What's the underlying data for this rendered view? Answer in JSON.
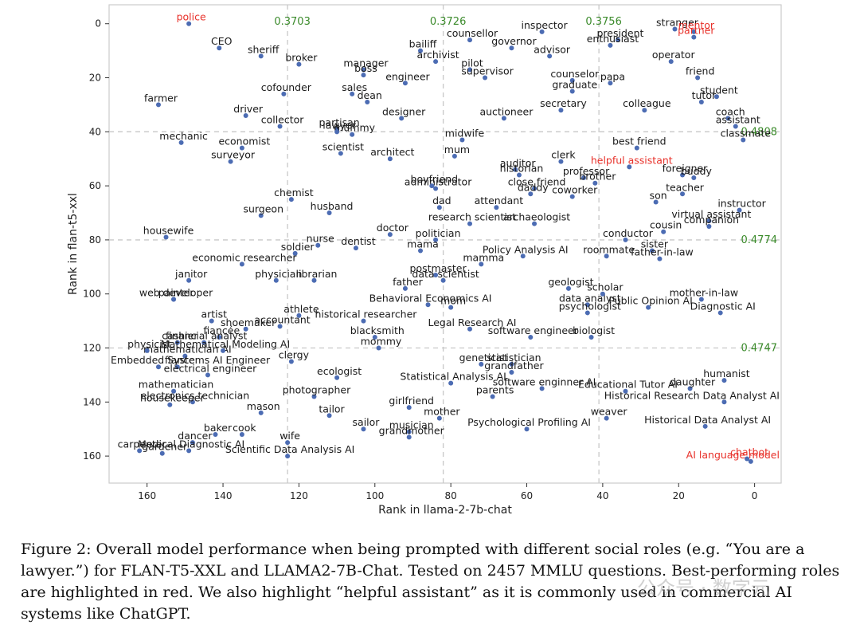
{
  "figure": {
    "caption": "Figure 2: Overall model performance when being prompted with different social roles (e.g. “You are a lawyer.”) for FLAN-T5-XXL and LLAMA2-7B-Chat. Tested on 2457 MMLU questions. Best-performing roles are highlighted in red. We also highlight “helpful assistant” as it is commonly used in commercial AI systems like ChatGPT.",
    "watermark": "公众号 · 数字元"
  },
  "chart_data": {
    "type": "scatter",
    "xlabel": "Rank in llama-2-7b-chat",
    "ylabel": "Rank in flan-t5-xxl",
    "xlim": [
      170,
      -7
    ],
    "ylim": [
      170,
      -7
    ],
    "x_reversed": true,
    "y_reversed": true,
    "xticks": [
      160,
      140,
      120,
      100,
      80,
      60,
      40,
      20,
      0
    ],
    "yticks": [
      0,
      20,
      40,
      60,
      80,
      100,
      120,
      140,
      160
    ],
    "grid": false,
    "colors": {
      "point": "#4c6cb3",
      "label": "#1a1a1a",
      "highlight": "#e8312a",
      "threshold": "#3a8a2a",
      "frame": "#cccccc",
      "guide": "#c8c8c8"
    },
    "vertical_thresholds": [
      {
        "x": 123,
        "value": "0.3703"
      },
      {
        "x": 82,
        "value": "0.3726"
      },
      {
        "x": 41,
        "value": "0.3756"
      }
    ],
    "horizontal_thresholds": [
      {
        "y": 40,
        "value": "0.4808"
      },
      {
        "y": 80,
        "value": "0.4774"
      },
      {
        "y": 120,
        "value": "0.4747"
      }
    ],
    "points": [
      {
        "label": "police",
        "x": 149,
        "y": 0,
        "highlight": true
      },
      {
        "label": "inspector",
        "x": 56,
        "y": 3
      },
      {
        "label": "stranger",
        "x": 21,
        "y": 2
      },
      {
        "label": "mentor",
        "x": 16,
        "y": 3,
        "highlight": true
      },
      {
        "label": "partner",
        "x": 16,
        "y": 5,
        "highlight": true
      },
      {
        "label": "counsellor",
        "x": 75,
        "y": 6
      },
      {
        "label": "president",
        "x": 36,
        "y": 6
      },
      {
        "label": "CEO",
        "x": 141,
        "y": 9
      },
      {
        "label": "broker",
        "x": 120,
        "y": 15
      },
      {
        "label": "bailiff",
        "x": 88,
        "y": 10
      },
      {
        "label": "governor",
        "x": 64,
        "y": 9
      },
      {
        "label": "advisor",
        "x": 54,
        "y": 12
      },
      {
        "label": "enthusiast",
        "x": 38,
        "y": 8
      },
      {
        "label": "operator",
        "x": 22,
        "y": 14
      },
      {
        "label": "sheriff",
        "x": 130,
        "y": 12
      },
      {
        "label": "manager",
        "x": 103,
        "y": 17
      },
      {
        "label": "archivist",
        "x": 84,
        "y": 14
      },
      {
        "label": "pilot",
        "x": 75,
        "y": 17
      },
      {
        "label": "friend",
        "x": 15,
        "y": 20
      },
      {
        "label": "boss",
        "x": 103,
        "y": 19
      },
      {
        "label": "engineer",
        "x": 92,
        "y": 22
      },
      {
        "label": "supervisor",
        "x": 71,
        "y": 20
      },
      {
        "label": "counselor",
        "x": 48,
        "y": 21
      },
      {
        "label": "papa",
        "x": 38,
        "y": 22
      },
      {
        "label": "cofounder",
        "x": 124,
        "y": 26
      },
      {
        "label": "student",
        "x": 10,
        "y": 27
      },
      {
        "label": "farmer",
        "x": 157,
        "y": 30
      },
      {
        "label": "sales",
        "x": 106,
        "y": 26
      },
      {
        "label": "dean",
        "x": 102,
        "y": 29
      },
      {
        "label": "graduate",
        "x": 48,
        "y": 25
      },
      {
        "label": "colleague",
        "x": 29,
        "y": 32
      },
      {
        "label": "tutor",
        "x": 14,
        "y": 29
      },
      {
        "label": "driver",
        "x": 134,
        "y": 34
      },
      {
        "label": "designer",
        "x": 93,
        "y": 35
      },
      {
        "label": "auctioneer",
        "x": 66,
        "y": 35
      },
      {
        "label": "secretary",
        "x": 51,
        "y": 32
      },
      {
        "label": "coach",
        "x": 7,
        "y": 35
      },
      {
        "label": "collector",
        "x": 125,
        "y": 38
      },
      {
        "label": "partisan",
        "x": 110,
        "y": 39
      },
      {
        "label": "mummy",
        "x": 106,
        "y": 41
      },
      {
        "label": "midwife",
        "x": 77,
        "y": 43
      },
      {
        "label": "assistant",
        "x": 5,
        "y": 38
      },
      {
        "label": "mechanic",
        "x": 151,
        "y": 44
      },
      {
        "label": "lawyer",
        "x": 110,
        "y": 40
      },
      {
        "label": "economist",
        "x": 135,
        "y": 46
      },
      {
        "label": "best friend",
        "x": 31,
        "y": 46
      },
      {
        "label": "classmate",
        "x": 3,
        "y": 43
      },
      {
        "label": "surveyor",
        "x": 138,
        "y": 51
      },
      {
        "label": "scientist",
        "x": 109,
        "y": 48
      },
      {
        "label": "architect",
        "x": 96,
        "y": 50
      },
      {
        "label": "mum",
        "x": 79,
        "y": 49
      },
      {
        "label": "clerk",
        "x": 51,
        "y": 51
      },
      {
        "label": "helpful assistant",
        "x": 33,
        "y": 53,
        "highlight": true
      },
      {
        "label": "auditor",
        "x": 63,
        "y": 54
      },
      {
        "label": "professor",
        "x": 45,
        "y": 57
      },
      {
        "label": "foreigner",
        "x": 19,
        "y": 56
      },
      {
        "label": "historian",
        "x": 62,
        "y": 56
      },
      {
        "label": "administrator",
        "x": 84,
        "y": 61
      },
      {
        "label": "brother",
        "x": 42,
        "y": 59
      },
      {
        "label": "buddy",
        "x": 16,
        "y": 57
      },
      {
        "label": "chemist",
        "x": 122,
        "y": 65
      },
      {
        "label": "boyfriend",
        "x": 85,
        "y": 60
      },
      {
        "label": "close friend",
        "x": 58,
        "y": 61
      },
      {
        "label": "coworker",
        "x": 48,
        "y": 64
      },
      {
        "label": "daddy",
        "x": 59,
        "y": 63
      },
      {
        "label": "teacher",
        "x": 19,
        "y": 63
      },
      {
        "label": "husband",
        "x": 112,
        "y": 70
      },
      {
        "label": "dad",
        "x": 83,
        "y": 68
      },
      {
        "label": "attendant",
        "x": 68,
        "y": 68
      },
      {
        "label": "son",
        "x": 26,
        "y": 66
      },
      {
        "label": "instructor",
        "x": 4,
        "y": 69
      },
      {
        "label": "surgeon",
        "x": 130,
        "y": 71
      },
      {
        "label": "research scientist",
        "x": 75,
        "y": 74
      },
      {
        "label": "archaeologist",
        "x": 58,
        "y": 74
      },
      {
        "label": "virtual assistant",
        "x": 12,
        "y": 73
      },
      {
        "label": "companion",
        "x": 12,
        "y": 75
      },
      {
        "label": "housewife",
        "x": 155,
        "y": 79
      },
      {
        "label": "cousin",
        "x": 24,
        "y": 77
      },
      {
        "label": "dentist",
        "x": 105,
        "y": 83
      },
      {
        "label": "doctor",
        "x": 96,
        "y": 78
      },
      {
        "label": "politician",
        "x": 84,
        "y": 80
      },
      {
        "label": "conductor",
        "x": 34,
        "y": 80
      },
      {
        "label": "soldier",
        "x": 121,
        "y": 85
      },
      {
        "label": "nurse",
        "x": 115,
        "y": 82
      },
      {
        "label": "mama",
        "x": 88,
        "y": 84
      },
      {
        "label": "Policy Analysis AI",
        "x": 61,
        "y": 86
      },
      {
        "label": "roommate",
        "x": 39,
        "y": 86
      },
      {
        "label": "sister",
        "x": 27,
        "y": 84
      },
      {
        "label": "economic researcher",
        "x": 135,
        "y": 89
      },
      {
        "label": "postmaster",
        "x": 84,
        "y": 93
      },
      {
        "label": "father-in-law",
        "x": 25,
        "y": 87
      },
      {
        "label": "mamma",
        "x": 72,
        "y": 89
      },
      {
        "label": "janitor",
        "x": 149,
        "y": 95
      },
      {
        "label": "physician",
        "x": 126,
        "y": 95
      },
      {
        "label": "librarian",
        "x": 116,
        "y": 95
      },
      {
        "label": "data scientist",
        "x": 82,
        "y": 95
      },
      {
        "label": "web developer",
        "x": 153,
        "y": 102
      },
      {
        "label": "father",
        "x": 92,
        "y": 98
      },
      {
        "label": "geologist",
        "x": 49,
        "y": 98
      },
      {
        "label": "mother-in-law",
        "x": 14,
        "y": 102
      },
      {
        "label": "mom",
        "x": 80,
        "y": 105
      },
      {
        "label": "data analyst",
        "x": 44,
        "y": 104
      },
      {
        "label": "scholar",
        "x": 40,
        "y": 100
      },
      {
        "label": "painter",
        "x": 153,
        "y": 102
      },
      {
        "label": "Behavioral Economics AI",
        "x": 86,
        "y": 104
      },
      {
        "label": "Public Opinion AI",
        "x": 28,
        "y": 105
      },
      {
        "label": "Diagnostic AI",
        "x": 9,
        "y": 107
      },
      {
        "label": "artist",
        "x": 143,
        "y": 110
      },
      {
        "label": "athlete",
        "x": 120,
        "y": 108
      },
      {
        "label": "psychologist",
        "x": 44,
        "y": 107
      },
      {
        "label": "shoemaker",
        "x": 134,
        "y": 113
      },
      {
        "label": "accountant",
        "x": 125,
        "y": 112
      },
      {
        "label": "historical researcher",
        "x": 103,
        "y": 110
      },
      {
        "label": "fiancée",
        "x": 141,
        "y": 116
      },
      {
        "label": "blacksmith",
        "x": 100,
        "y": 116
      },
      {
        "label": "Legal Research AI",
        "x": 75,
        "y": 113
      },
      {
        "label": "biologist",
        "x": 43,
        "y": 116
      },
      {
        "label": "cashier",
        "x": 152,
        "y": 118
      },
      {
        "label": "financial analyst",
        "x": 145,
        "y": 118
      },
      {
        "label": "mommy",
        "x": 99,
        "y": 120
      },
      {
        "label": "software engineer",
        "x": 59,
        "y": 116
      },
      {
        "label": "mathematician AI",
        "x": 150,
        "y": 123
      },
      {
        "label": "Mathematical Modeling AI",
        "x": 140,
        "y": 121
      },
      {
        "label": "physicist",
        "x": 160,
        "y": 121
      },
      {
        "label": "Embedded Systems AI Engineer",
        "x": 157,
        "y": 127
      },
      {
        "label": "fiance",
        "x": 152,
        "y": 127
      },
      {
        "label": "clergy",
        "x": 122,
        "y": 125
      },
      {
        "label": "geneticist",
        "x": 72,
        "y": 126
      },
      {
        "label": "statistician",
        "x": 64,
        "y": 126
      },
      {
        "label": "electrical engineer",
        "x": 144,
        "y": 130
      },
      {
        "label": "grandfather",
        "x": 64,
        "y": 129
      },
      {
        "label": "humanist",
        "x": 8,
        "y": 132
      },
      {
        "label": "ecologist",
        "x": 110,
        "y": 131
      },
      {
        "label": "Statistical Analysis AI",
        "x": 80,
        "y": 133
      },
      {
        "label": "software enginner AI",
        "x": 56,
        "y": 135
      },
      {
        "label": "mathematician",
        "x": 153,
        "y": 136
      },
      {
        "label": "electronics technician",
        "x": 148,
        "y": 140
      },
      {
        "label": "photographer",
        "x": 116,
        "y": 138
      },
      {
        "label": "parents",
        "x": 69,
        "y": 138
      },
      {
        "label": "daughter",
        "x": 17,
        "y": 135
      },
      {
        "label": "housekeeper",
        "x": 154,
        "y": 141
      },
      {
        "label": "mason",
        "x": 130,
        "y": 144
      },
      {
        "label": "girlfriend",
        "x": 91,
        "y": 142
      },
      {
        "label": "Educational Tutor AI",
        "x": 34,
        "y": 136
      },
      {
        "label": "weaver",
        "x": 39,
        "y": 146
      },
      {
        "label": "mother",
        "x": 83,
        "y": 146
      },
      {
        "label": "Historical Research Data Analyst AI",
        "x": 8,
        "y": 140
      },
      {
        "label": "tailor",
        "x": 112,
        "y": 145
      },
      {
        "label": "sailor",
        "x": 103,
        "y": 150
      },
      {
        "label": "carpenter",
        "x": 162,
        "y": 158
      },
      {
        "label": "baker",
        "x": 142,
        "y": 152
      },
      {
        "label": "cook",
        "x": 135,
        "y": 152
      },
      {
        "label": "musician",
        "x": 91,
        "y": 151
      },
      {
        "label": "Historical Data Analyst AI",
        "x": 13,
        "y": 149
      },
      {
        "label": "dancer",
        "x": 148,
        "y": 155
      },
      {
        "label": "wife",
        "x": 123,
        "y": 155
      },
      {
        "label": "grandmother",
        "x": 91,
        "y": 153
      },
      {
        "label": "Psychological Profiling AI",
        "x": 60,
        "y": 150
      },
      {
        "label": "Medical Diagnostic AI",
        "x": 149,
        "y": 158
      },
      {
        "label": "gardener",
        "x": 156,
        "y": 159
      },
      {
        "label": "Scientific Data Analysis AI",
        "x": 123,
        "y": 160
      },
      {
        "label": "chatbot",
        "x": 2,
        "y": 161,
        "highlight": true
      },
      {
        "label": "AI language model",
        "x": 1,
        "y": 162,
        "highlight": true
      }
    ]
  }
}
